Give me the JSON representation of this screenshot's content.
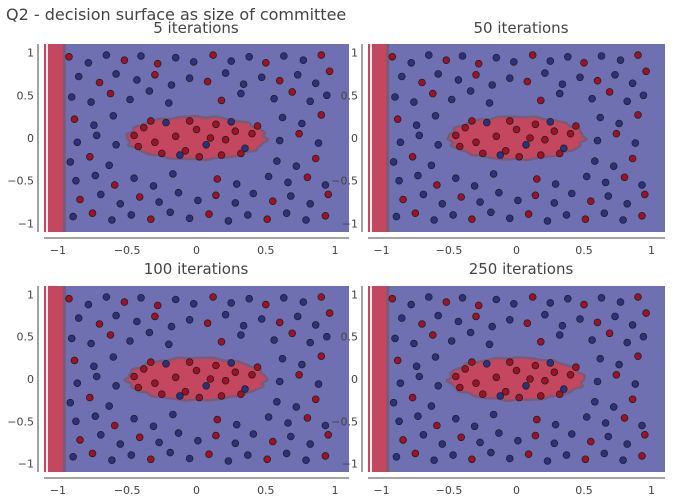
{
  "figure": {
    "title": "Q2 - decision surface as size of committee"
  },
  "colors": {
    "background_class0": "#6f70b1",
    "background_class1": "#c4475f",
    "boundary": "#7a5a78",
    "point_class0": "#2b3182",
    "point_class1": "#a11025",
    "strip_light": "#f0ecee"
  },
  "chart_data": [
    {
      "type": "scatter",
      "title": "5 iterations",
      "xlim": [
        -1.1,
        1.1
      ],
      "ylim": [
        -1.1,
        1.1
      ],
      "x_ticks": [
        -1,
        -0.5,
        0,
        0.5,
        1
      ],
      "x_tick_labels": [
        "−1",
        "−0.5",
        "0",
        "0.5",
        "1"
      ],
      "y_ticks": [
        1,
        0.5,
        0,
        -0.5,
        -1
      ],
      "y_tick_labels": [
        "1",
        "0.5",
        "0",
        "−0.5",
        "−1"
      ],
      "grid": false,
      "decision_region_class1": {
        "shape": "ellipse",
        "center": [
          0,
          0
        ],
        "radii": [
          0.5,
          0.25
        ]
      },
      "left_strip": {
        "x_range": [
          -1.1,
          -0.95
        ],
        "class": 1
      }
    },
    {
      "type": "scatter",
      "title": "50 iterations",
      "xlim": [
        -1.1,
        1.1
      ],
      "ylim": [
        -1.1,
        1.1
      ],
      "x_ticks": [
        -1,
        -0.5,
        0,
        0.5,
        1
      ],
      "x_tick_labels": [
        "−1",
        "−0.5",
        "0",
        "0.5",
        "1"
      ],
      "y_ticks": [
        1,
        0.5,
        0,
        -0.5,
        -1
      ],
      "y_tick_labels": [
        "1",
        "0.5",
        "0",
        "−0.5",
        "−1"
      ],
      "grid": false,
      "decision_region_class1": {
        "shape": "ellipse",
        "center": [
          0,
          0
        ],
        "radii": [
          0.5,
          0.25
        ]
      },
      "left_strip": {
        "x_range": [
          -1.1,
          -0.95
        ],
        "class": 1
      }
    },
    {
      "type": "scatter",
      "title": "100 iterations",
      "xlim": [
        -1.1,
        1.1
      ],
      "ylim": [
        -1.1,
        1.1
      ],
      "x_ticks": [
        -1,
        -0.5,
        0,
        0.5,
        1
      ],
      "x_tick_labels": [
        "−1",
        "−0.5",
        "0",
        "0.5",
        "1"
      ],
      "y_ticks": [
        1,
        0.5,
        0,
        -0.5,
        -1
      ],
      "y_tick_labels": [
        "1",
        "0.5",
        "0",
        "−0.5",
        "−1"
      ],
      "grid": false,
      "decision_region_class1": {
        "shape": "ellipse",
        "center": [
          0,
          0
        ],
        "radii": [
          0.5,
          0.25
        ]
      },
      "left_strip": {
        "x_range": [
          -1.1,
          -0.95
        ],
        "class": 1
      }
    },
    {
      "type": "scatter",
      "title": "250 iterations",
      "xlim": [
        -1.1,
        1.1
      ],
      "ylim": [
        -1.1,
        1.1
      ],
      "x_ticks": [
        -1,
        -0.5,
        0,
        0.5,
        1
      ],
      "x_tick_labels": [
        "−1",
        "−0.5",
        "0",
        "0.5",
        "1"
      ],
      "y_ticks": [
        1,
        0.5,
        0,
        -0.5,
        -1
      ],
      "y_tick_labels": [
        "1",
        "0.5",
        "0",
        "−0.5",
        "−1"
      ],
      "grid": false,
      "decision_region_class1": {
        "shape": "ellipse",
        "center": [
          0,
          0
        ],
        "radii": [
          0.5,
          0.25
        ]
      },
      "left_strip": {
        "x_range": [
          -1.1,
          -0.95
        ],
        "class": 1
      }
    }
  ],
  "points": [
    {
      "x": -0.92,
      "y": 0.95,
      "c": 1
    },
    {
      "x": -0.78,
      "y": 0.88,
      "c": 0
    },
    {
      "x": -0.65,
      "y": 0.97,
      "c": 0
    },
    {
      "x": -0.52,
      "y": 0.91,
      "c": 1
    },
    {
      "x": -0.4,
      "y": 0.96,
      "c": 0
    },
    {
      "x": -0.28,
      "y": 0.87,
      "c": 1
    },
    {
      "x": -0.15,
      "y": 0.94,
      "c": 0
    },
    {
      "x": -0.02,
      "y": 0.89,
      "c": 0
    },
    {
      "x": 0.12,
      "y": 0.97,
      "c": 1
    },
    {
      "x": 0.25,
      "y": 0.9,
      "c": 0
    },
    {
      "x": 0.38,
      "y": 0.95,
      "c": 0
    },
    {
      "x": 0.5,
      "y": 0.88,
      "c": 1
    },
    {
      "x": 0.63,
      "y": 0.96,
      "c": 0
    },
    {
      "x": 0.77,
      "y": 0.91,
      "c": 0
    },
    {
      "x": 0.9,
      "y": 0.97,
      "c": 1
    },
    {
      "x": -0.85,
      "y": 0.72,
      "c": 0
    },
    {
      "x": -0.7,
      "y": 0.65,
      "c": 1
    },
    {
      "x": -0.58,
      "y": 0.75,
      "c": 0
    },
    {
      "x": -0.43,
      "y": 0.68,
      "c": 0
    },
    {
      "x": -0.3,
      "y": 0.74,
      "c": 1
    },
    {
      "x": -0.18,
      "y": 0.62,
      "c": 0
    },
    {
      "x": -0.05,
      "y": 0.7,
      "c": 0
    },
    {
      "x": 0.08,
      "y": 0.66,
      "c": 1
    },
    {
      "x": 0.21,
      "y": 0.76,
      "c": 0
    },
    {
      "x": 0.34,
      "y": 0.63,
      "c": 0
    },
    {
      "x": 0.47,
      "y": 0.71,
      "c": 0
    },
    {
      "x": 0.6,
      "y": 0.67,
      "c": 1
    },
    {
      "x": 0.73,
      "y": 0.74,
      "c": 0
    },
    {
      "x": 0.86,
      "y": 0.64,
      "c": 0
    },
    {
      "x": 0.96,
      "y": 0.78,
      "c": 1
    },
    {
      "x": -0.9,
      "y": 0.48,
      "c": 0
    },
    {
      "x": -0.76,
      "y": 0.42,
      "c": 0
    },
    {
      "x": -0.62,
      "y": 0.52,
      "c": 1
    },
    {
      "x": -0.48,
      "y": 0.45,
      "c": 0
    },
    {
      "x": -0.34,
      "y": 0.55,
      "c": 0
    },
    {
      "x": -0.2,
      "y": 0.41,
      "c": 0
    },
    {
      "x": 0.18,
      "y": 0.44,
      "c": 1
    },
    {
      "x": 0.32,
      "y": 0.52,
      "c": 0
    },
    {
      "x": 0.56,
      "y": 0.46,
      "c": 0
    },
    {
      "x": 0.69,
      "y": 0.54,
      "c": 1
    },
    {
      "x": 0.82,
      "y": 0.43,
      "c": 0
    },
    {
      "x": 0.94,
      "y": 0.5,
      "c": 0
    },
    {
      "x": -0.88,
      "y": 0.22,
      "c": 1
    },
    {
      "x": -0.74,
      "y": 0.15,
      "c": 0
    },
    {
      "x": -0.6,
      "y": 0.26,
      "c": 0
    },
    {
      "x": 0.62,
      "y": 0.24,
      "c": 0
    },
    {
      "x": 0.76,
      "y": 0.17,
      "c": 0
    },
    {
      "x": 0.9,
      "y": 0.27,
      "c": 1
    },
    {
      "x": -0.86,
      "y": -0.05,
      "c": 0
    },
    {
      "x": -0.72,
      "y": 0.03,
      "c": 0
    },
    {
      "x": -0.58,
      "y": -0.08,
      "c": 0
    },
    {
      "x": 0.6,
      "y": -0.03,
      "c": 0
    },
    {
      "x": 0.74,
      "y": 0.05,
      "c": 1
    },
    {
      "x": 0.88,
      "y": -0.06,
      "c": 0
    },
    {
      "x": -0.91,
      "y": -0.28,
      "c": 0
    },
    {
      "x": -0.77,
      "y": -0.22,
      "c": 1
    },
    {
      "x": -0.63,
      "y": -0.32,
      "c": 0
    },
    {
      "x": 0.58,
      "y": -0.27,
      "c": 0
    },
    {
      "x": 0.72,
      "y": -0.33,
      "c": 0
    },
    {
      "x": 0.86,
      "y": -0.24,
      "c": 1
    },
    {
      "x": -0.87,
      "y": -0.5,
      "c": 0
    },
    {
      "x": -0.73,
      "y": -0.44,
      "c": 0
    },
    {
      "x": -0.59,
      "y": -0.55,
      "c": 1
    },
    {
      "x": -0.45,
      "y": -0.47,
      "c": 0
    },
    {
      "x": -0.31,
      "y": -0.56,
      "c": 0
    },
    {
      "x": -0.17,
      "y": -0.42,
      "c": 0
    },
    {
      "x": 0.15,
      "y": -0.48,
      "c": 1
    },
    {
      "x": 0.29,
      "y": -0.54,
      "c": 0
    },
    {
      "x": 0.52,
      "y": -0.45,
      "c": 0
    },
    {
      "x": 0.66,
      "y": -0.52,
      "c": 0
    },
    {
      "x": 0.8,
      "y": -0.46,
      "c": 1
    },
    {
      "x": 0.93,
      "y": -0.55,
      "c": 0
    },
    {
      "x": -0.84,
      "y": -0.72,
      "c": 1
    },
    {
      "x": -0.69,
      "y": -0.66,
      "c": 0
    },
    {
      "x": -0.55,
      "y": -0.77,
      "c": 0
    },
    {
      "x": -0.41,
      "y": -0.69,
      "c": 1
    },
    {
      "x": -0.27,
      "y": -0.75,
      "c": 0
    },
    {
      "x": -0.13,
      "y": -0.64,
      "c": 0
    },
    {
      "x": 0.01,
      "y": -0.73,
      "c": 0
    },
    {
      "x": 0.14,
      "y": -0.67,
      "c": 1
    },
    {
      "x": 0.28,
      "y": -0.76,
      "c": 0
    },
    {
      "x": 0.41,
      "y": -0.65,
      "c": 0
    },
    {
      "x": 0.55,
      "y": -0.74,
      "c": 1
    },
    {
      "x": 0.68,
      "y": -0.68,
      "c": 0
    },
    {
      "x": 0.82,
      "y": -0.77,
      "c": 0
    },
    {
      "x": 0.95,
      "y": -0.66,
      "c": 1
    },
    {
      "x": -0.89,
      "y": -0.92,
      "c": 0
    },
    {
      "x": -0.75,
      "y": -0.88,
      "c": 1
    },
    {
      "x": -0.61,
      "y": -0.96,
      "c": 0
    },
    {
      "x": -0.47,
      "y": -0.9,
      "c": 0
    },
    {
      "x": -0.33,
      "y": -0.95,
      "c": 1
    },
    {
      "x": -0.19,
      "y": -0.87,
      "c": 0
    },
    {
      "x": -0.05,
      "y": -0.94,
      "c": 0
    },
    {
      "x": 0.09,
      "y": -0.89,
      "c": 1
    },
    {
      "x": 0.23,
      "y": -0.97,
      "c": 0
    },
    {
      "x": 0.37,
      "y": -0.9,
      "c": 0
    },
    {
      "x": 0.51,
      "y": -0.95,
      "c": 1
    },
    {
      "x": 0.65,
      "y": -0.88,
      "c": 0
    },
    {
      "x": 0.79,
      "y": -0.96,
      "c": 0
    },
    {
      "x": 0.93,
      "y": -0.91,
      "c": 1
    },
    {
      "x": -0.38,
      "y": 0.12,
      "c": 1
    },
    {
      "x": -0.3,
      "y": -0.05,
      "c": 1
    },
    {
      "x": -0.22,
      "y": 0.18,
      "c": 0
    },
    {
      "x": -0.15,
      "y": 0.02,
      "c": 1
    },
    {
      "x": -0.08,
      "y": -0.15,
      "c": 1
    },
    {
      "x": 0.0,
      "y": 0.1,
      "c": 1
    },
    {
      "x": 0.07,
      "y": -0.08,
      "c": 0
    },
    {
      "x": 0.14,
      "y": 0.16,
      "c": 1
    },
    {
      "x": 0.21,
      "y": -0.02,
      "c": 1
    },
    {
      "x": 0.28,
      "y": 0.08,
      "c": 1
    },
    {
      "x": 0.35,
      "y": -0.12,
      "c": 0
    },
    {
      "x": 0.4,
      "y": 0.05,
      "c": 1
    },
    {
      "x": -0.42,
      "y": -0.1,
      "c": 1
    },
    {
      "x": -0.25,
      "y": -0.18,
      "c": 1
    },
    {
      "x": -0.05,
      "y": 0.2,
      "c": 1
    },
    {
      "x": 0.1,
      "y": 0.0,
      "c": 1
    },
    {
      "x": 0.25,
      "y": 0.19,
      "c": 0
    },
    {
      "x": 0.32,
      "y": -0.18,
      "c": 1
    },
    {
      "x": -0.33,
      "y": 0.2,
      "c": 1
    },
    {
      "x": -0.12,
      "y": -0.2,
      "c": 0
    },
    {
      "x": 0.18,
      "y": -0.2,
      "c": 1
    },
    {
      "x": 0.44,
      "y": 0.14,
      "c": 1
    },
    {
      "x": -0.45,
      "y": 0.03,
      "c": 1
    },
    {
      "x": 0.02,
      "y": -0.22,
      "c": 1
    }
  ]
}
